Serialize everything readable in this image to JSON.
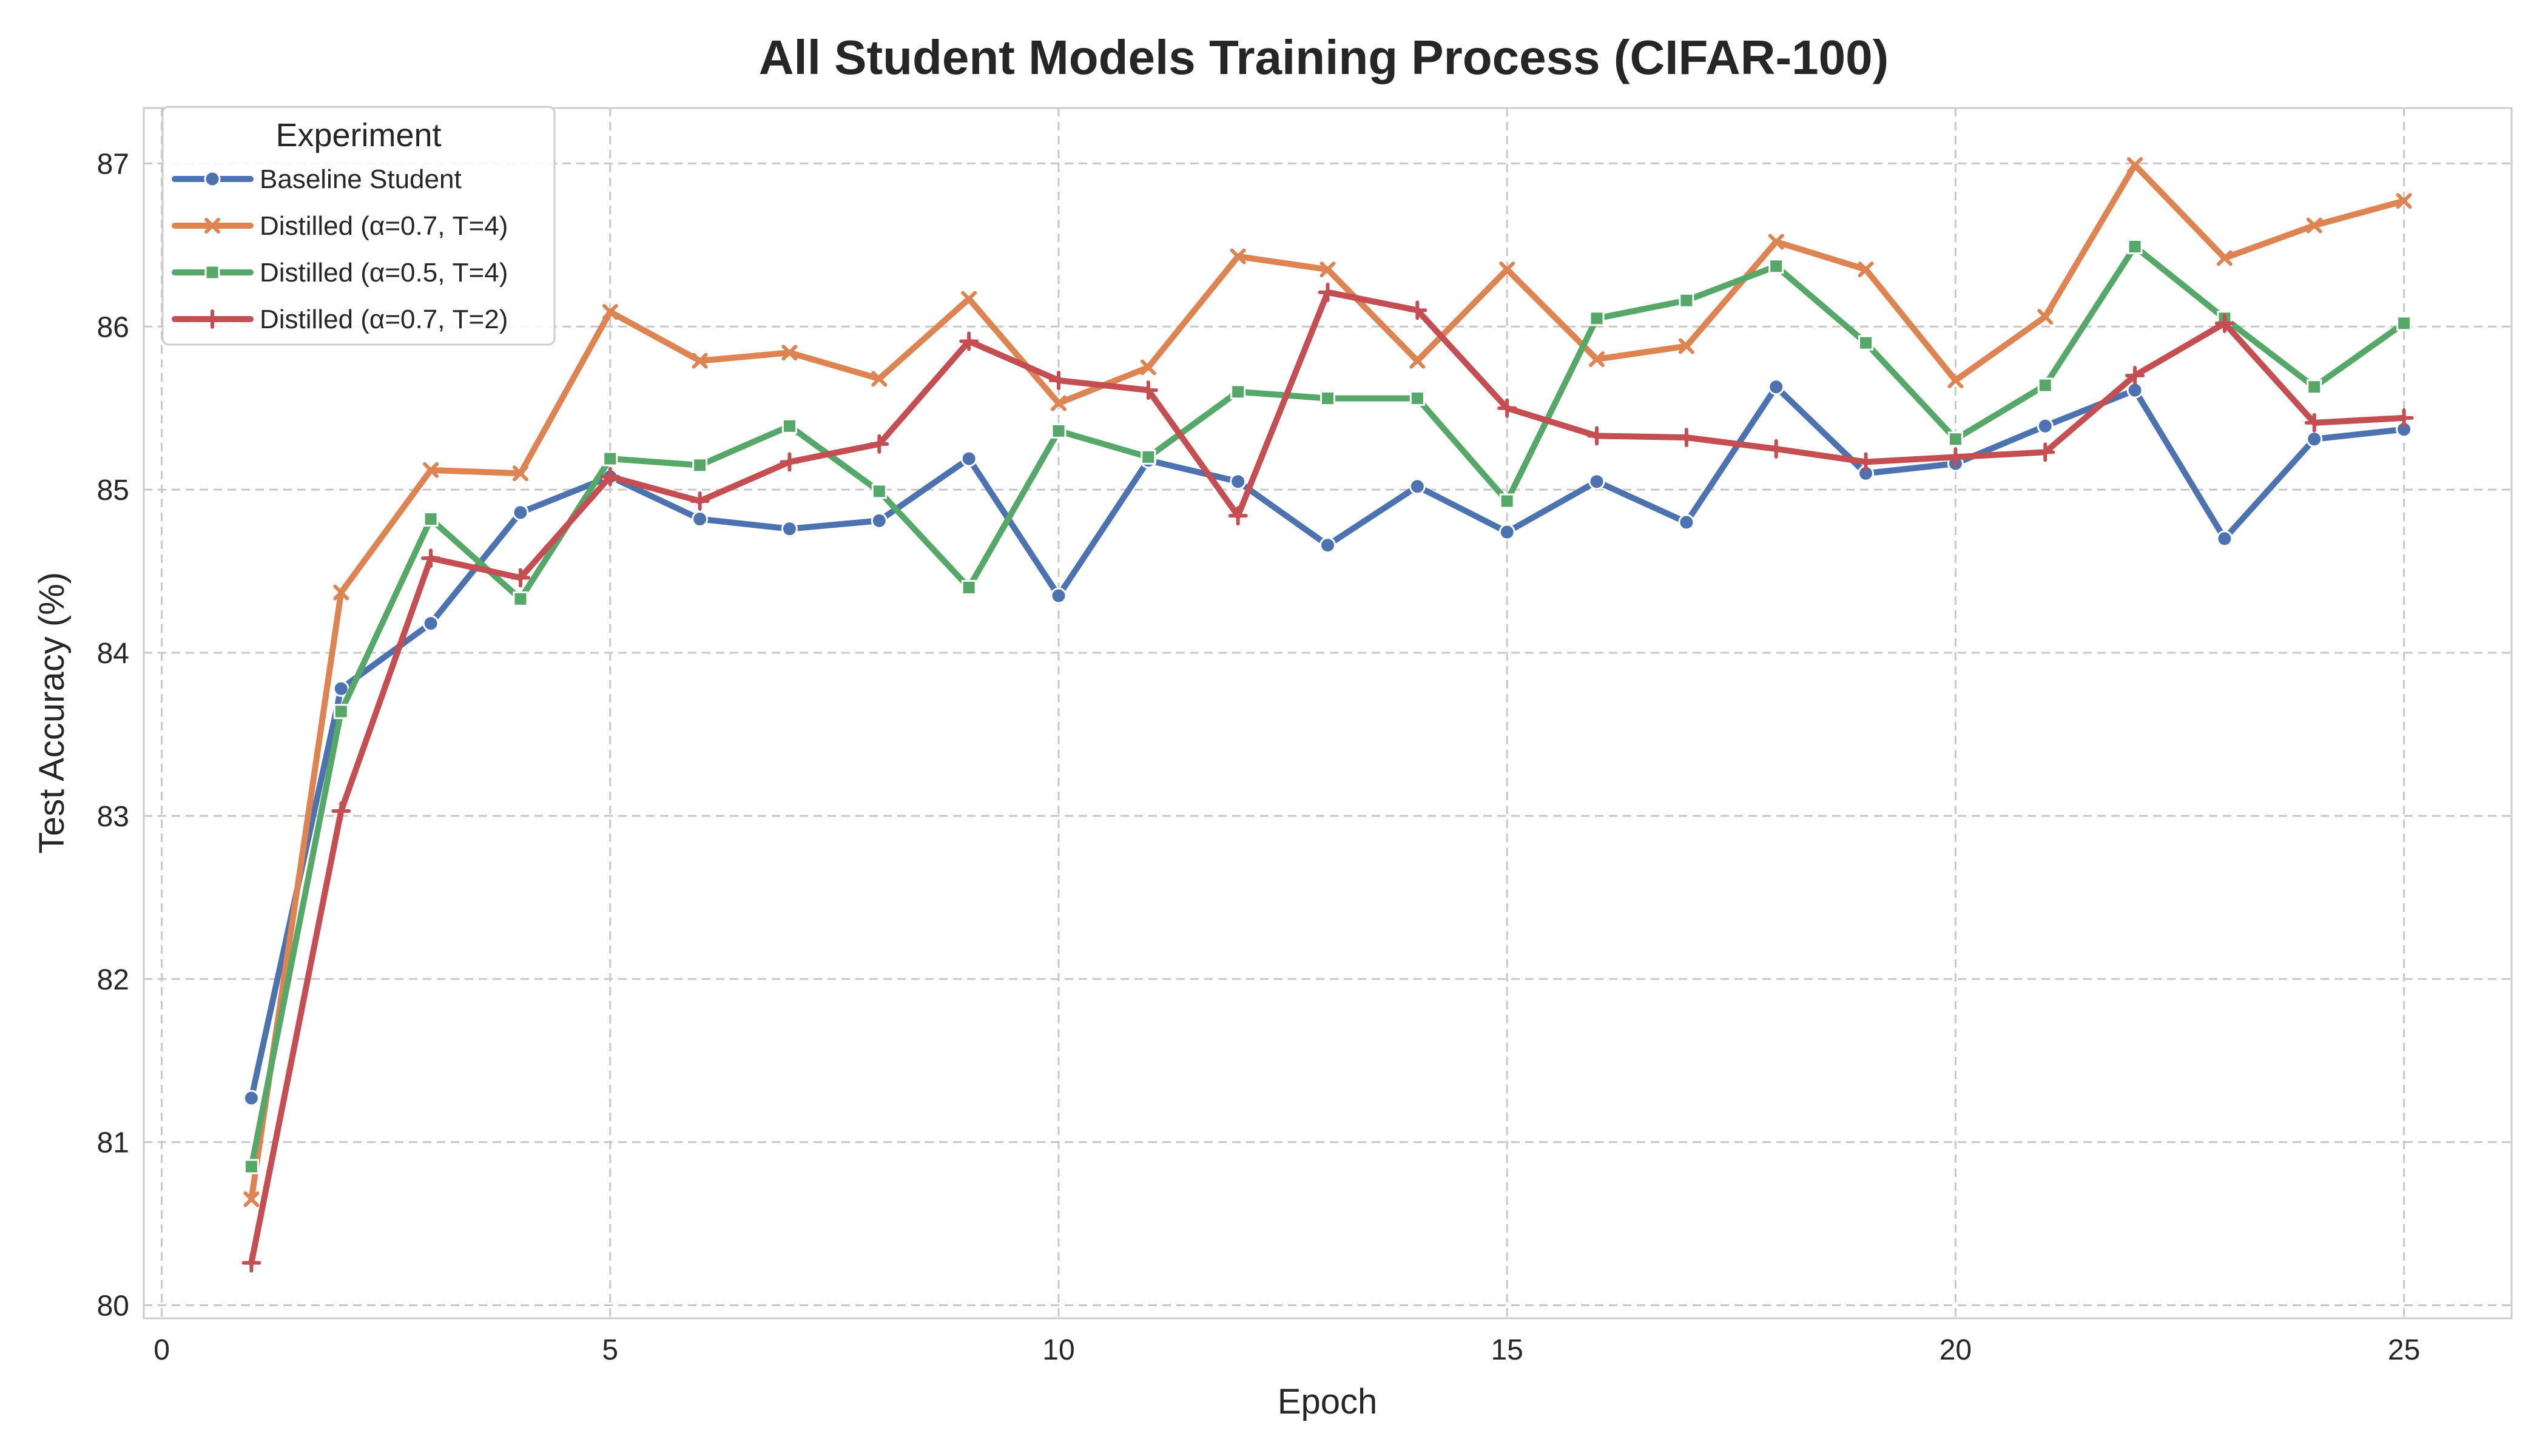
{
  "chart_data": {
    "type": "line",
    "title": "All Student Models Training Process (CIFAR-100)",
    "xlabel": "Epoch",
    "ylabel": "Test Accuracy (%)",
    "xlim": [
      -0.2,
      26.2
    ],
    "ylim": [
      79.92,
      87.34
    ],
    "xticks": [
      0,
      5,
      10,
      15,
      20,
      25
    ],
    "yticks": [
      80,
      81,
      82,
      83,
      84,
      85,
      86,
      87
    ],
    "grid": true,
    "legend": {
      "title": "Experiment",
      "position": "top-left"
    },
    "x": [
      1,
      2,
      3,
      4,
      5,
      6,
      7,
      8,
      9,
      10,
      11,
      12,
      13,
      14,
      15,
      16,
      17,
      18,
      19,
      20,
      21,
      22,
      23,
      24,
      25
    ],
    "series": [
      {
        "name": "Baseline Student",
        "color": "#4c72b0",
        "marker": "circle",
        "values": [
          81.27,
          83.78,
          84.18,
          84.86,
          85.08,
          84.82,
          84.76,
          84.81,
          85.19,
          84.35,
          85.18,
          85.05,
          84.66,
          85.02,
          84.74,
          85.05,
          84.8,
          85.63,
          85.1,
          85.16,
          85.39,
          85.61,
          84.7,
          85.31,
          85.37
        ]
      },
      {
        "name": "Distilled (α=0.7, T=4)",
        "color": "#dd8452",
        "marker": "x",
        "values": [
          80.65,
          84.37,
          85.12,
          85.1,
          86.09,
          85.79,
          85.84,
          85.68,
          86.17,
          85.53,
          85.75,
          86.43,
          86.35,
          85.79,
          86.35,
          85.8,
          85.88,
          86.52,
          86.35,
          85.67,
          86.06,
          86.99,
          86.42,
          86.62,
          86.77
        ]
      },
      {
        "name": "Distilled (α=0.5, T=4)",
        "color": "#55a868",
        "marker": "square",
        "values": [
          80.85,
          83.64,
          84.82,
          84.33,
          85.19,
          85.15,
          85.39,
          84.99,
          84.4,
          85.36,
          85.2,
          85.6,
          85.56,
          85.56,
          84.93,
          86.05,
          86.16,
          86.37,
          85.9,
          85.31,
          85.64,
          86.49,
          86.05,
          85.63,
          86.02
        ]
      },
      {
        "name": "Distilled (α=0.7, T=2)",
        "color": "#c44e52",
        "marker": "plus",
        "values": [
          80.26,
          83.03,
          84.58,
          84.46,
          85.08,
          84.93,
          85.17,
          85.28,
          85.91,
          85.67,
          85.61,
          84.84,
          86.21,
          86.1,
          85.5,
          85.33,
          85.32,
          85.25,
          85.17,
          85.2,
          85.23,
          85.7,
          86.02,
          85.41,
          85.44
        ]
      }
    ]
  }
}
